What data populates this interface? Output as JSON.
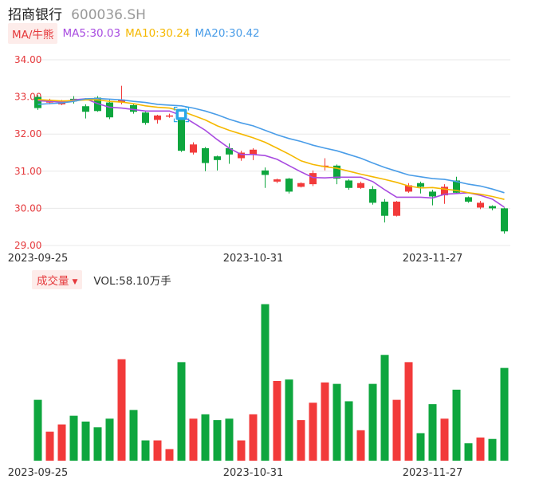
{
  "header": {
    "stock_name": "招商银行",
    "stock_code": "600036.SH"
  },
  "ma_legend": {
    "tag": "MA/牛熊",
    "items": [
      {
        "label": "MA5:30.03",
        "color": "#a84be0"
      },
      {
        "label": "MA10:30.24",
        "color": "#f5b800"
      },
      {
        "label": "MA20:30.42",
        "color": "#4a9de8"
      }
    ]
  },
  "volume_legend": {
    "tag": "成交量",
    "caret": "▼",
    "text": "VOL:58.10万手"
  },
  "colors": {
    "up": "#f23a3a",
    "down": "#0ea63e",
    "grid": "#e8e8e8",
    "axis_label": "#e5383b",
    "ma5": "#a84be0",
    "ma10": "#f5b800",
    "ma20": "#4a9de8",
    "marker": "#2aa7e8"
  },
  "chart_data": {
    "type": "candlestick",
    "y_ticks": [
      "34.00",
      "33.00",
      "32.00",
      "31.00",
      "30.00",
      "29.00"
    ],
    "ylim": [
      29,
      34
    ],
    "x_ticks": [
      {
        "label": "2023-09-25",
        "index": 0
      },
      {
        "label": "2023-10-31",
        "index": 18
      },
      {
        "label": "2023-11-27",
        "index": 33
      }
    ],
    "candles": [
      {
        "o": 33.0,
        "h": 33.05,
        "l": 32.65,
        "c": 32.7
      },
      {
        "o": 32.85,
        "h": 32.95,
        "l": 32.8,
        "c": 32.88
      },
      {
        "o": 32.8,
        "h": 32.92,
        "l": 32.78,
        "c": 32.9
      },
      {
        "o": 32.95,
        "h": 33.02,
        "l": 32.82,
        "c": 32.88
      },
      {
        "o": 32.75,
        "h": 32.8,
        "l": 32.42,
        "c": 32.6
      },
      {
        "o": 32.98,
        "h": 33.02,
        "l": 32.6,
        "c": 32.62
      },
      {
        "o": 32.85,
        "h": 32.92,
        "l": 32.4,
        "c": 32.45
      },
      {
        "o": 32.85,
        "h": 33.3,
        "l": 32.8,
        "c": 32.93
      },
      {
        "o": 32.78,
        "h": 32.8,
        "l": 32.55,
        "c": 32.6
      },
      {
        "o": 32.58,
        "h": 32.6,
        "l": 32.25,
        "c": 32.3
      },
      {
        "o": 32.38,
        "h": 32.52,
        "l": 32.28,
        "c": 32.5
      },
      {
        "o": 32.5,
        "h": 32.55,
        "l": 32.44,
        "c": 32.5
      },
      {
        "o": 32.4,
        "h": 32.42,
        "l": 31.52,
        "c": 31.55
      },
      {
        "o": 31.5,
        "h": 31.78,
        "l": 31.45,
        "c": 31.72
      },
      {
        "o": 31.62,
        "h": 31.65,
        "l": 31.0,
        "c": 31.22
      },
      {
        "o": 31.4,
        "h": 31.42,
        "l": 31.02,
        "c": 31.3
      },
      {
        "o": 31.62,
        "h": 31.75,
        "l": 31.2,
        "c": 31.45
      },
      {
        "o": 31.35,
        "h": 31.55,
        "l": 31.28,
        "c": 31.5
      },
      {
        "o": 31.45,
        "h": 31.62,
        "l": 31.3,
        "c": 31.58
      },
      {
        "o": 31.02,
        "h": 31.1,
        "l": 30.55,
        "c": 30.9
      },
      {
        "o": 30.72,
        "h": 30.8,
        "l": 30.68,
        "c": 30.78
      },
      {
        "o": 30.8,
        "h": 30.82,
        "l": 30.4,
        "c": 30.45
      },
      {
        "o": 30.58,
        "h": 30.7,
        "l": 30.56,
        "c": 30.68
      },
      {
        "o": 30.65,
        "h": 31.02,
        "l": 30.6,
        "c": 30.95
      },
      {
        "o": 31.12,
        "h": 31.35,
        "l": 31.02,
        "c": 31.15
      },
      {
        "o": 31.15,
        "h": 31.18,
        "l": 30.65,
        "c": 30.8
      },
      {
        "o": 30.75,
        "h": 30.78,
        "l": 30.5,
        "c": 30.55
      },
      {
        "o": 30.55,
        "h": 30.72,
        "l": 30.52,
        "c": 30.68
      },
      {
        "o": 30.52,
        "h": 30.6,
        "l": 30.1,
        "c": 30.15
      },
      {
        "o": 30.18,
        "h": 30.25,
        "l": 29.62,
        "c": 29.8
      },
      {
        "o": 29.8,
        "h": 30.2,
        "l": 29.78,
        "c": 30.18
      },
      {
        "o": 30.45,
        "h": 30.68,
        "l": 30.42,
        "c": 30.62
      },
      {
        "o": 30.68,
        "h": 30.72,
        "l": 30.4,
        "c": 30.58
      },
      {
        "o": 30.45,
        "h": 30.5,
        "l": 30.08,
        "c": 30.32
      },
      {
        "o": 30.35,
        "h": 30.65,
        "l": 30.12,
        "c": 30.58
      },
      {
        "o": 30.75,
        "h": 30.85,
        "l": 30.4,
        "c": 30.42
      },
      {
        "o": 30.3,
        "h": 30.32,
        "l": 30.15,
        "c": 30.18
      },
      {
        "o": 30.02,
        "h": 30.2,
        "l": 29.98,
        "c": 30.15
      },
      {
        "o": 30.06,
        "h": 30.08,
        "l": 29.95,
        "c": 30.0
      },
      {
        "o": 30.0,
        "h": 30.02,
        "l": 29.32,
        "c": 29.38
      }
    ],
    "ma5": [
      32.9,
      32.88,
      32.86,
      32.92,
      32.95,
      32.82,
      32.72,
      32.7,
      32.66,
      32.62,
      32.62,
      32.62,
      32.5,
      32.3,
      32.1,
      31.85,
      31.62,
      31.45,
      31.45,
      31.42,
      31.32,
      31.15,
      30.98,
      30.83,
      30.82,
      30.84,
      30.84,
      30.84,
      30.72,
      30.5,
      30.3,
      30.3,
      30.3,
      30.28,
      30.38,
      30.4,
      30.42,
      30.35,
      30.25,
      30.03
    ],
    "ma10": [
      32.93,
      32.91,
      32.89,
      32.9,
      32.92,
      32.92,
      32.88,
      32.86,
      32.82,
      32.76,
      32.72,
      32.7,
      32.62,
      32.5,
      32.38,
      32.22,
      32.1,
      32.0,
      31.9,
      31.78,
      31.62,
      31.46,
      31.28,
      31.18,
      31.12,
      31.08,
      31.0,
      30.92,
      30.85,
      30.78,
      30.7,
      30.6,
      30.55,
      30.56,
      30.52,
      30.48,
      30.42,
      30.38,
      30.32,
      30.24
    ],
    "ma20": [
      32.8,
      32.82,
      32.84,
      32.88,
      32.95,
      32.96,
      32.94,
      32.92,
      32.88,
      32.85,
      32.8,
      32.78,
      32.76,
      32.7,
      32.62,
      32.52,
      32.4,
      32.3,
      32.22,
      32.1,
      31.98,
      31.88,
      31.8,
      31.7,
      31.62,
      31.55,
      31.45,
      31.35,
      31.22,
      31.1,
      31.0,
      30.9,
      30.85,
      30.8,
      30.78,
      30.72,
      30.65,
      30.6,
      30.52,
      30.42
    ],
    "marker_index": 12,
    "volume": [
      42,
      20,
      25,
      31,
      27,
      23,
      29,
      70,
      35,
      14,
      14,
      8,
      68,
      29,
      32,
      28,
      29,
      14,
      32,
      108,
      55,
      56,
      28,
      40,
      54,
      53,
      41,
      21,
      53,
      73,
      42,
      68,
      19,
      39,
      29,
      49,
      12,
      16,
      15,
      64
    ],
    "vol_max": 110
  },
  "x_tick_labels_bottom": [
    "2023-09-25",
    "2023-10-31",
    "2023-11-27"
  ]
}
